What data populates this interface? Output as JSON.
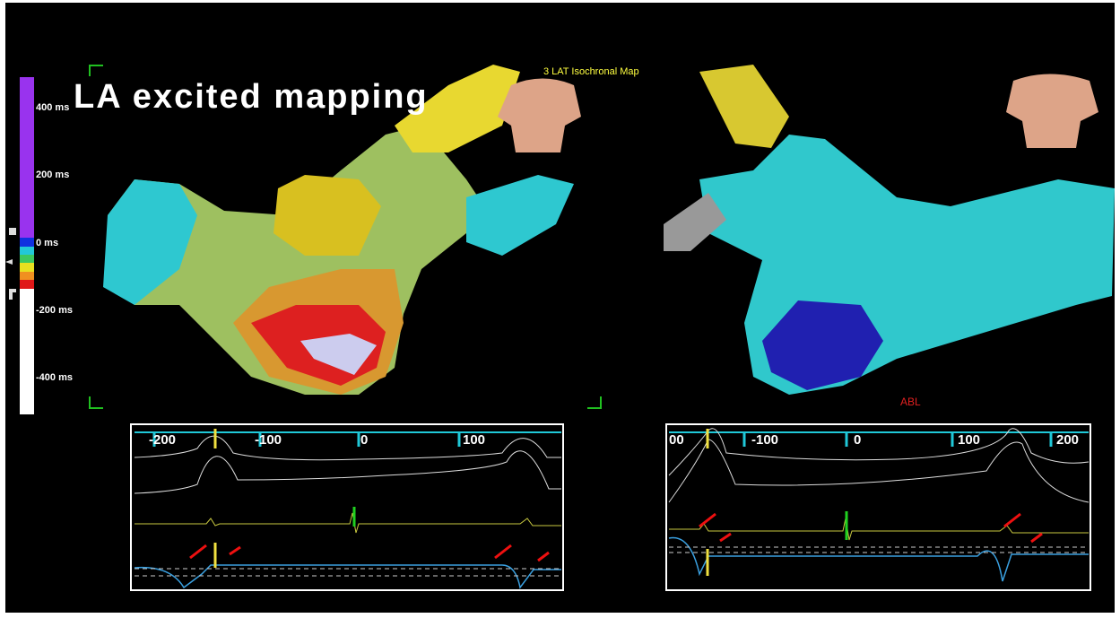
{
  "title": "LA excited mapping",
  "map_header": "3 LAT Isochronal Map",
  "colorbar": {
    "labels": [
      "400 ms",
      "200 ms",
      "0 ms",
      "-200 ms",
      "-400 ms"
    ]
  },
  "catheter_label": "ABL",
  "left_panel": {
    "ruler_labels": [
      "-200",
      "-100",
      "0",
      "100"
    ]
  },
  "right_panel": {
    "ruler_labels": [
      "00",
      "-100",
      "0",
      "100",
      "200"
    ]
  }
}
